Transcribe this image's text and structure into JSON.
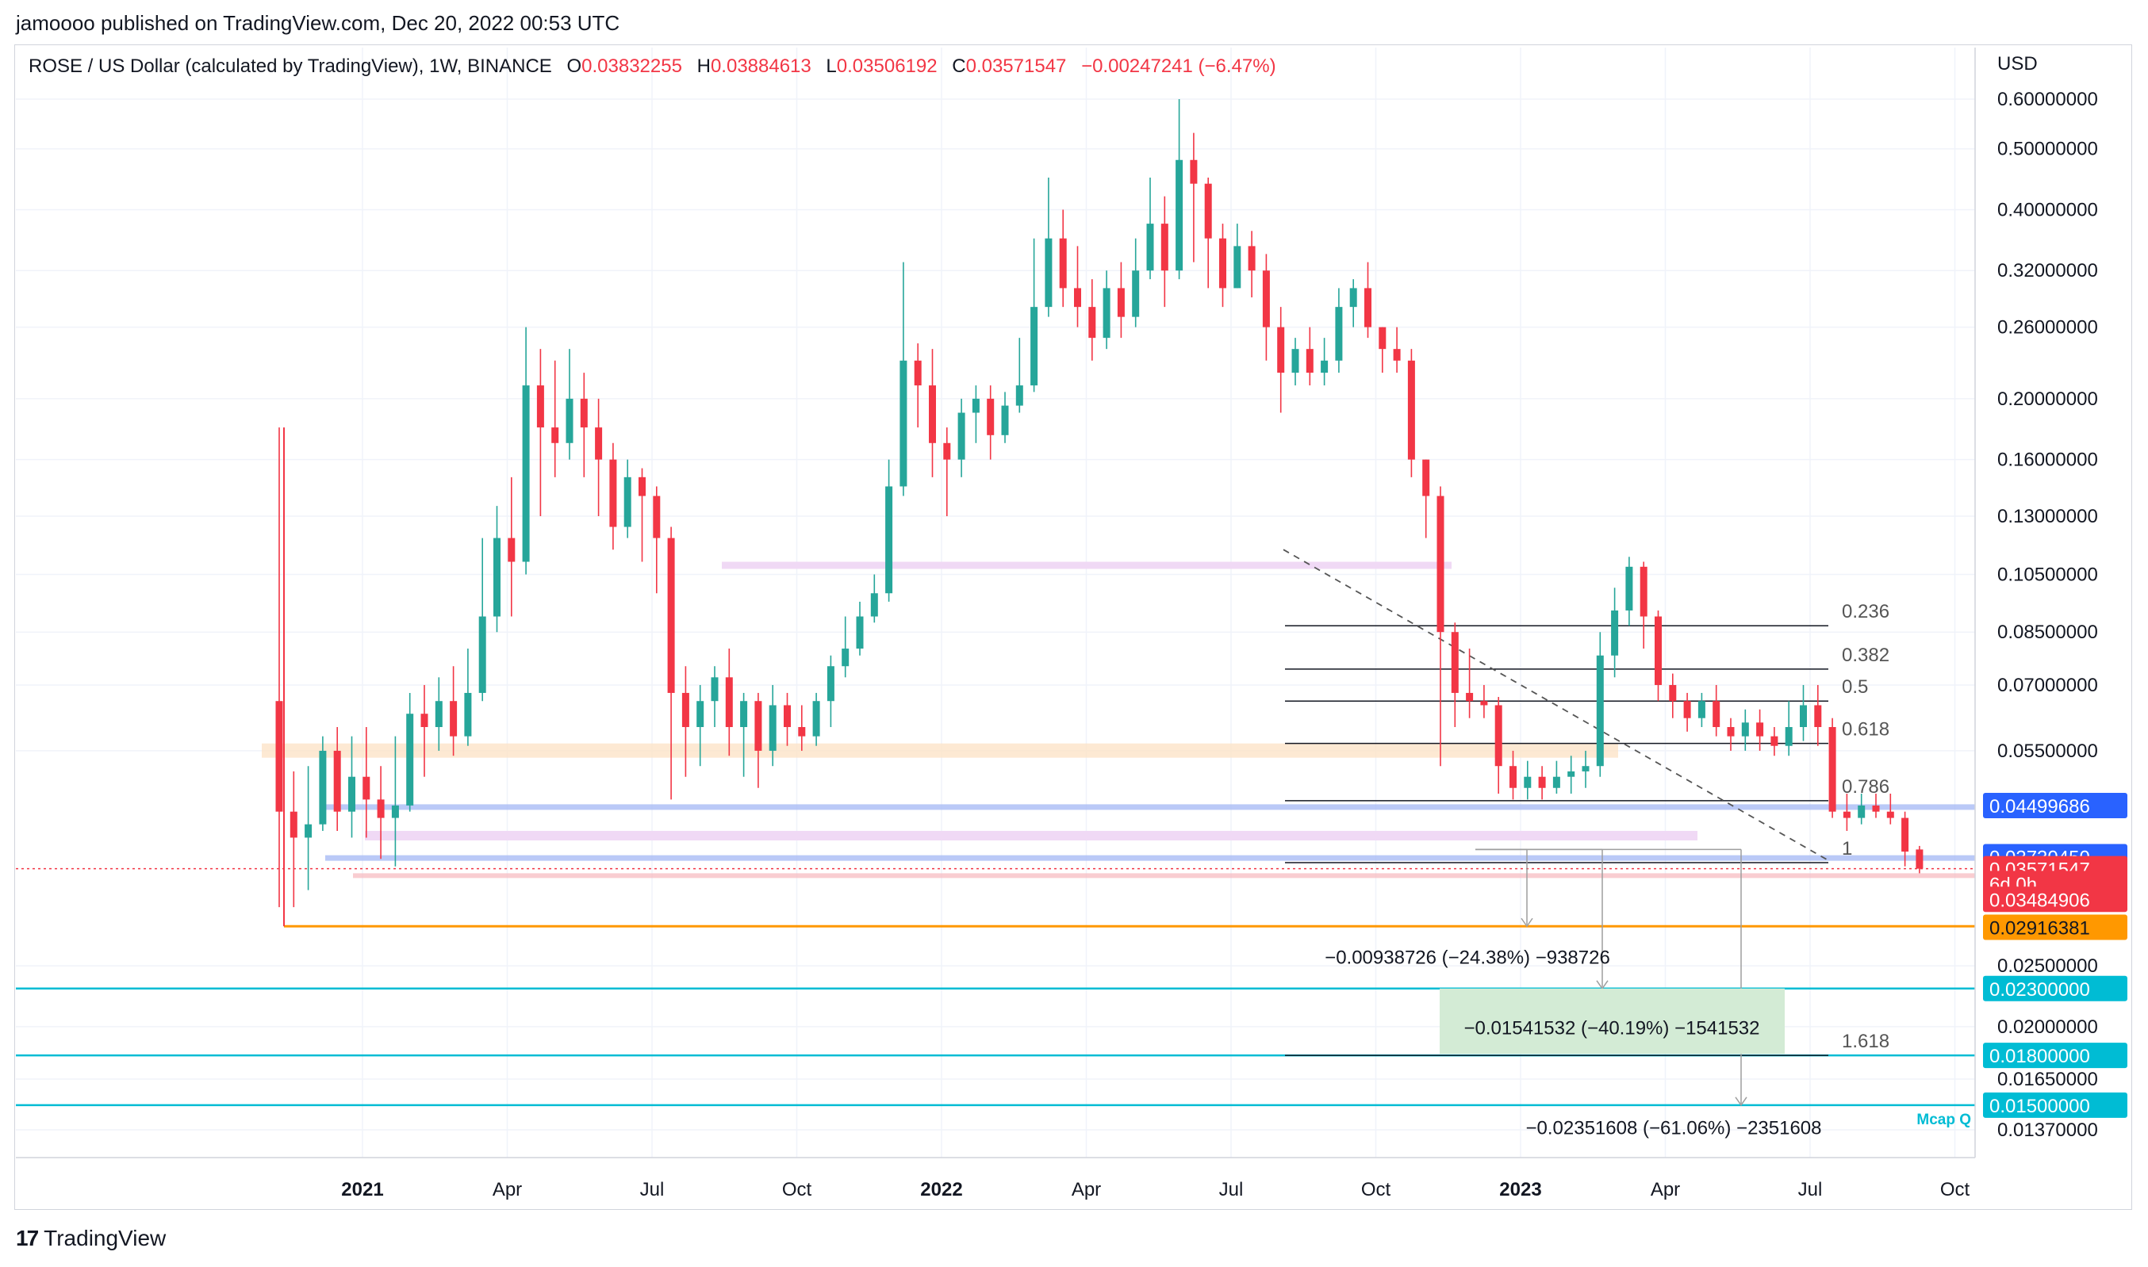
{
  "publisher": "jamoooo published on TradingView.com, Dec 20, 2022 00:53 UTC",
  "legend": {
    "symbol": "ROSE / US Dollar (calculated by TradingView), 1W, BINANCE",
    "o_label": "O",
    "o": "0.03832255",
    "h_label": "H",
    "h": "0.03884613",
    "l_label": "L",
    "l": "0.03506192",
    "c_label": "C",
    "c": "0.03571547",
    "change": "−0.00247241 (−6.47%)"
  },
  "footer": {
    "brand": "TradingView",
    "logo_icon": "tradingview-logo-icon"
  },
  "chart_data": {
    "type": "candlestick",
    "scale": "log",
    "currency_label": "USD",
    "y_ticks": [
      "0.60000000",
      "0.50000000",
      "0.40000000",
      "0.32000000",
      "0.26000000",
      "0.20000000",
      "0.16000000",
      "0.13000000",
      "0.10500000",
      "0.08500000",
      "0.07000000",
      "0.05500000",
      "0.02500000",
      "0.02000000",
      "0.01650000",
      "0.01370000"
    ],
    "x_ticks": [
      {
        "label": "2021",
        "t": 0.5,
        "bold": true
      },
      {
        "label": "Apr",
        "t": 10.5
      },
      {
        "label": "Jul",
        "t": 20.5
      },
      {
        "label": "Oct",
        "t": 30.5
      },
      {
        "label": "2022",
        "t": 40.5,
        "bold": true
      },
      {
        "label": "Apr",
        "t": 50.5
      },
      {
        "label": "Jul",
        "t": 60.5
      },
      {
        "label": "Oct",
        "t": 70.5
      },
      {
        "label": "2023",
        "t": 80.5,
        "bold": true
      },
      {
        "label": "Apr",
        "t": 90.5
      },
      {
        "label": "Jul",
        "t": 100.5
      },
      {
        "label": "Oct",
        "t": 110.5
      }
    ],
    "colors": {
      "up": "#26a69a",
      "down": "#f23645",
      "fib": "#131722",
      "support": "#00bcd4",
      "blue_band": "#a9bcf5",
      "pink_band": "#f0d9f5",
      "orange_band": "#fde3c8"
    },
    "candles": [
      [
        0.066,
        0.044,
        0.18,
        0.031
      ],
      [
        0.044,
        0.04,
        0.051,
        0.031
      ],
      [
        0.04,
        0.042,
        0.052,
        0.033
      ],
      [
        0.042,
        0.055,
        0.058,
        0.041
      ],
      [
        0.055,
        0.044,
        0.06,
        0.041
      ],
      [
        0.044,
        0.05,
        0.058,
        0.04
      ],
      [
        0.05,
        0.046,
        0.06,
        0.04
      ],
      [
        0.046,
        0.043,
        0.052,
        0.037
      ],
      [
        0.043,
        0.045,
        0.058,
        0.036
      ],
      [
        0.045,
        0.063,
        0.068,
        0.044
      ],
      [
        0.063,
        0.06,
        0.07,
        0.05
      ],
      [
        0.06,
        0.066,
        0.072,
        0.055
      ],
      [
        0.066,
        0.058,
        0.075,
        0.054
      ],
      [
        0.058,
        0.068,
        0.08,
        0.056
      ],
      [
        0.068,
        0.09,
        0.12,
        0.066
      ],
      [
        0.09,
        0.12,
        0.135,
        0.085
      ],
      [
        0.12,
        0.11,
        0.15,
        0.09
      ],
      [
        0.11,
        0.21,
        0.26,
        0.105
      ],
      [
        0.21,
        0.18,
        0.24,
        0.13
      ],
      [
        0.18,
        0.17,
        0.23,
        0.15
      ],
      [
        0.17,
        0.2,
        0.24,
        0.16
      ],
      [
        0.2,
        0.18,
        0.22,
        0.15
      ],
      [
        0.18,
        0.16,
        0.2,
        0.13
      ],
      [
        0.16,
        0.125,
        0.17,
        0.115
      ],
      [
        0.125,
        0.15,
        0.16,
        0.12
      ],
      [
        0.15,
        0.14,
        0.155,
        0.11
      ],
      [
        0.14,
        0.12,
        0.145,
        0.098
      ],
      [
        0.12,
        0.068,
        0.125,
        0.046
      ],
      [
        0.068,
        0.06,
        0.075,
        0.05
      ],
      [
        0.06,
        0.066,
        0.07,
        0.052
      ],
      [
        0.066,
        0.072,
        0.075,
        0.06
      ],
      [
        0.072,
        0.06,
        0.08,
        0.054
      ],
      [
        0.06,
        0.066,
        0.068,
        0.05
      ],
      [
        0.066,
        0.055,
        0.068,
        0.048
      ],
      [
        0.055,
        0.065,
        0.07,
        0.052
      ],
      [
        0.065,
        0.06,
        0.068,
        0.056
      ],
      [
        0.06,
        0.058,
        0.065,
        0.055
      ],
      [
        0.058,
        0.066,
        0.068,
        0.056
      ],
      [
        0.066,
        0.075,
        0.078,
        0.06
      ],
      [
        0.075,
        0.08,
        0.09,
        0.072
      ],
      [
        0.08,
        0.09,
        0.095,
        0.078
      ],
      [
        0.09,
        0.098,
        0.105,
        0.088
      ],
      [
        0.098,
        0.145,
        0.16,
        0.095
      ],
      [
        0.145,
        0.23,
        0.33,
        0.14
      ],
      [
        0.23,
        0.21,
        0.245,
        0.18
      ],
      [
        0.21,
        0.17,
        0.24,
        0.15
      ],
      [
        0.17,
        0.16,
        0.18,
        0.13
      ],
      [
        0.16,
        0.19,
        0.2,
        0.15
      ],
      [
        0.19,
        0.2,
        0.21,
        0.17
      ],
      [
        0.2,
        0.175,
        0.21,
        0.16
      ],
      [
        0.175,
        0.195,
        0.205,
        0.17
      ],
      [
        0.195,
        0.21,
        0.25,
        0.19
      ],
      [
        0.21,
        0.28,
        0.36,
        0.205
      ],
      [
        0.28,
        0.36,
        0.45,
        0.27
      ],
      [
        0.36,
        0.3,
        0.4,
        0.28
      ],
      [
        0.3,
        0.28,
        0.35,
        0.26
      ],
      [
        0.28,
        0.25,
        0.31,
        0.23
      ],
      [
        0.25,
        0.3,
        0.32,
        0.24
      ],
      [
        0.3,
        0.27,
        0.33,
        0.25
      ],
      [
        0.27,
        0.32,
        0.36,
        0.26
      ],
      [
        0.32,
        0.38,
        0.45,
        0.31
      ],
      [
        0.38,
        0.32,
        0.42,
        0.28
      ],
      [
        0.32,
        0.48,
        0.6,
        0.31
      ],
      [
        0.48,
        0.44,
        0.53,
        0.33
      ],
      [
        0.44,
        0.36,
        0.45,
        0.3
      ],
      [
        0.36,
        0.3,
        0.38,
        0.28
      ],
      [
        0.3,
        0.35,
        0.38,
        0.3
      ],
      [
        0.35,
        0.32,
        0.37,
        0.29
      ],
      [
        0.32,
        0.26,
        0.34,
        0.23
      ],
      [
        0.26,
        0.22,
        0.28,
        0.19
      ],
      [
        0.22,
        0.24,
        0.25,
        0.21
      ],
      [
        0.24,
        0.22,
        0.26,
        0.21
      ],
      [
        0.22,
        0.23,
        0.25,
        0.21
      ],
      [
        0.23,
        0.28,
        0.3,
        0.22
      ],
      [
        0.28,
        0.3,
        0.31,
        0.26
      ],
      [
        0.3,
        0.26,
        0.33,
        0.25
      ],
      [
        0.26,
        0.24,
        0.26,
        0.22
      ],
      [
        0.24,
        0.23,
        0.26,
        0.22
      ],
      [
        0.23,
        0.16,
        0.24,
        0.15
      ],
      [
        0.16,
        0.14,
        0.16,
        0.12
      ],
      [
        0.14,
        0.085,
        0.145,
        0.052
      ],
      [
        0.085,
        0.068,
        0.088,
        0.06
      ],
      [
        0.068,
        0.066,
        0.08,
        0.062
      ],
      [
        0.066,
        0.065,
        0.07,
        0.062
      ],
      [
        0.065,
        0.052,
        0.067,
        0.047
      ],
      [
        0.052,
        0.048,
        0.055,
        0.046
      ],
      [
        0.048,
        0.05,
        0.053,
        0.046
      ],
      [
        0.05,
        0.048,
        0.052,
        0.046
      ],
      [
        0.048,
        0.05,
        0.053,
        0.047
      ],
      [
        0.05,
        0.051,
        0.054,
        0.047
      ],
      [
        0.051,
        0.052,
        0.055,
        0.048
      ],
      [
        0.052,
        0.078,
        0.085,
        0.05
      ],
      [
        0.078,
        0.092,
        0.1,
        0.072
      ],
      [
        0.092,
        0.108,
        0.112,
        0.087
      ],
      [
        0.108,
        0.09,
        0.11,
        0.08
      ],
      [
        0.09,
        0.07,
        0.092,
        0.066
      ],
      [
        0.07,
        0.066,
        0.073,
        0.062
      ],
      [
        0.066,
        0.062,
        0.068,
        0.059
      ],
      [
        0.062,
        0.066,
        0.068,
        0.06
      ],
      [
        0.066,
        0.06,
        0.07,
        0.058
      ],
      [
        0.06,
        0.058,
        0.062,
        0.055
      ],
      [
        0.058,
        0.061,
        0.064,
        0.055
      ],
      [
        0.061,
        0.058,
        0.064,
        0.055
      ],
      [
        0.058,
        0.056,
        0.06,
        0.054
      ],
      [
        0.056,
        0.06,
        0.066,
        0.054
      ],
      [
        0.06,
        0.065,
        0.07,
        0.057
      ],
      [
        0.065,
        0.06,
        0.07,
        0.056
      ],
      [
        0.06,
        0.044,
        0.062,
        0.043
      ],
      [
        0.044,
        0.043,
        0.047,
        0.041
      ],
      [
        0.043,
        0.045,
        0.047,
        0.042
      ],
      [
        0.045,
        0.044,
        0.047,
        0.043
      ],
      [
        0.044,
        0.043,
        0.047,
        0.042
      ],
      [
        0.043,
        0.038,
        0.044,
        0.036
      ],
      [
        0.0383,
        0.0357,
        0.0388,
        0.0351
      ]
    ],
    "fib_levels": [
      {
        "label": "0.236",
        "price": 0.087
      },
      {
        "label": "0.382",
        "price": 0.0742
      },
      {
        "label": "0.5",
        "price": 0.066
      },
      {
        "label": "0.618",
        "price": 0.0565
      },
      {
        "label": "0.786",
        "price": 0.0458
      },
      {
        "label": "1",
        "price": 0.0365
      },
      {
        "label": "1.618",
        "price": 0.018
      }
    ],
    "support_lines": [
      0.023,
      0.018,
      0.015
    ],
    "price_tags": [
      {
        "text": "0.04499686",
        "price": 0.045,
        "color": "#2962ff"
      },
      {
        "text": "0.03730450",
        "price": 0.0373,
        "color": "#2962ff"
      },
      {
        "text": "0.03571547",
        "price": 0.0357,
        "color": "#f23645"
      },
      {
        "text": "6d 0h",
        "price": 0.0338,
        "color": "#f23645"
      },
      {
        "text": "0.03484906",
        "price": 0.0319,
        "color": "#f23645"
      },
      {
        "text": "0.02916381",
        "price": 0.0288,
        "color": "#ff9800"
      },
      {
        "text": "0.02300000",
        "price": 0.023,
        "color": "#00bcd4"
      },
      {
        "text": "0.01800000",
        "price": 0.018,
        "color": "#00bcd4"
      },
      {
        "text": "0.01500000",
        "price": 0.015,
        "color": "#00bcd4"
      }
    ],
    "measurements": [
      {
        "label": "−0.00938726 (−24.38%) −938726",
        "from": 0.0383,
        "to": 0.0289
      },
      {
        "label": "−0.01541532 (−40.19%) −1541532",
        "from": 0.0383,
        "to": 0.023
      },
      {
        "label": "−0.02351608 (−61.06%) −2351608",
        "from": 0.0383,
        "to": 0.015
      }
    ],
    "mcap_label": "Mcap Q"
  }
}
